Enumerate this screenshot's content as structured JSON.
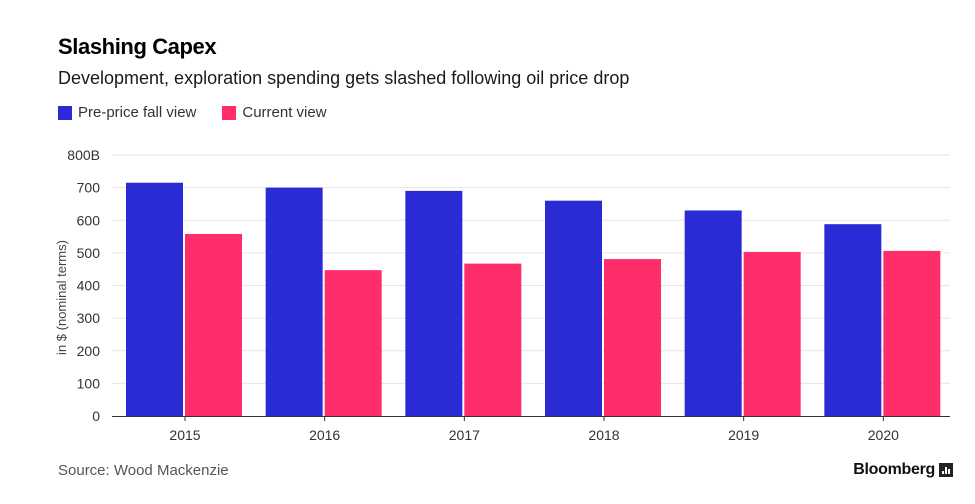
{
  "title": "Slashing Capex",
  "subtitle": "Development, exploration spending gets slashed following oil price drop",
  "legend": [
    {
      "label": "Pre-price fall view",
      "color": "#2b2bd6"
    },
    {
      "label": "Current view",
      "color": "#ff2d6a"
    }
  ],
  "source": "Source: Wood Mackenzie",
  "brand": "Bloomberg",
  "brand_icon": "bar-chart-icon",
  "chart_data": {
    "type": "bar",
    "categories": [
      "2015",
      "2016",
      "2017",
      "2018",
      "2019",
      "2020"
    ],
    "series": [
      {
        "name": "Pre-price fall view",
        "color": "#2b2bd6",
        "values": [
          715,
          700,
          690,
          660,
          630,
          588
        ]
      },
      {
        "name": "Current view",
        "color": "#ff2d6a",
        "values": [
          558,
          447,
          467,
          481,
          503,
          506
        ]
      }
    ],
    "ylabel": "in $ (nominal terms)",
    "ylim": [
      0,
      800
    ],
    "yticks": [
      0,
      100,
      200,
      300,
      400,
      500,
      600,
      700,
      800
    ],
    "ytick_labels": [
      "0",
      "100",
      "200",
      "300",
      "400",
      "500",
      "600",
      "700",
      "800B"
    ],
    "grid": true
  }
}
